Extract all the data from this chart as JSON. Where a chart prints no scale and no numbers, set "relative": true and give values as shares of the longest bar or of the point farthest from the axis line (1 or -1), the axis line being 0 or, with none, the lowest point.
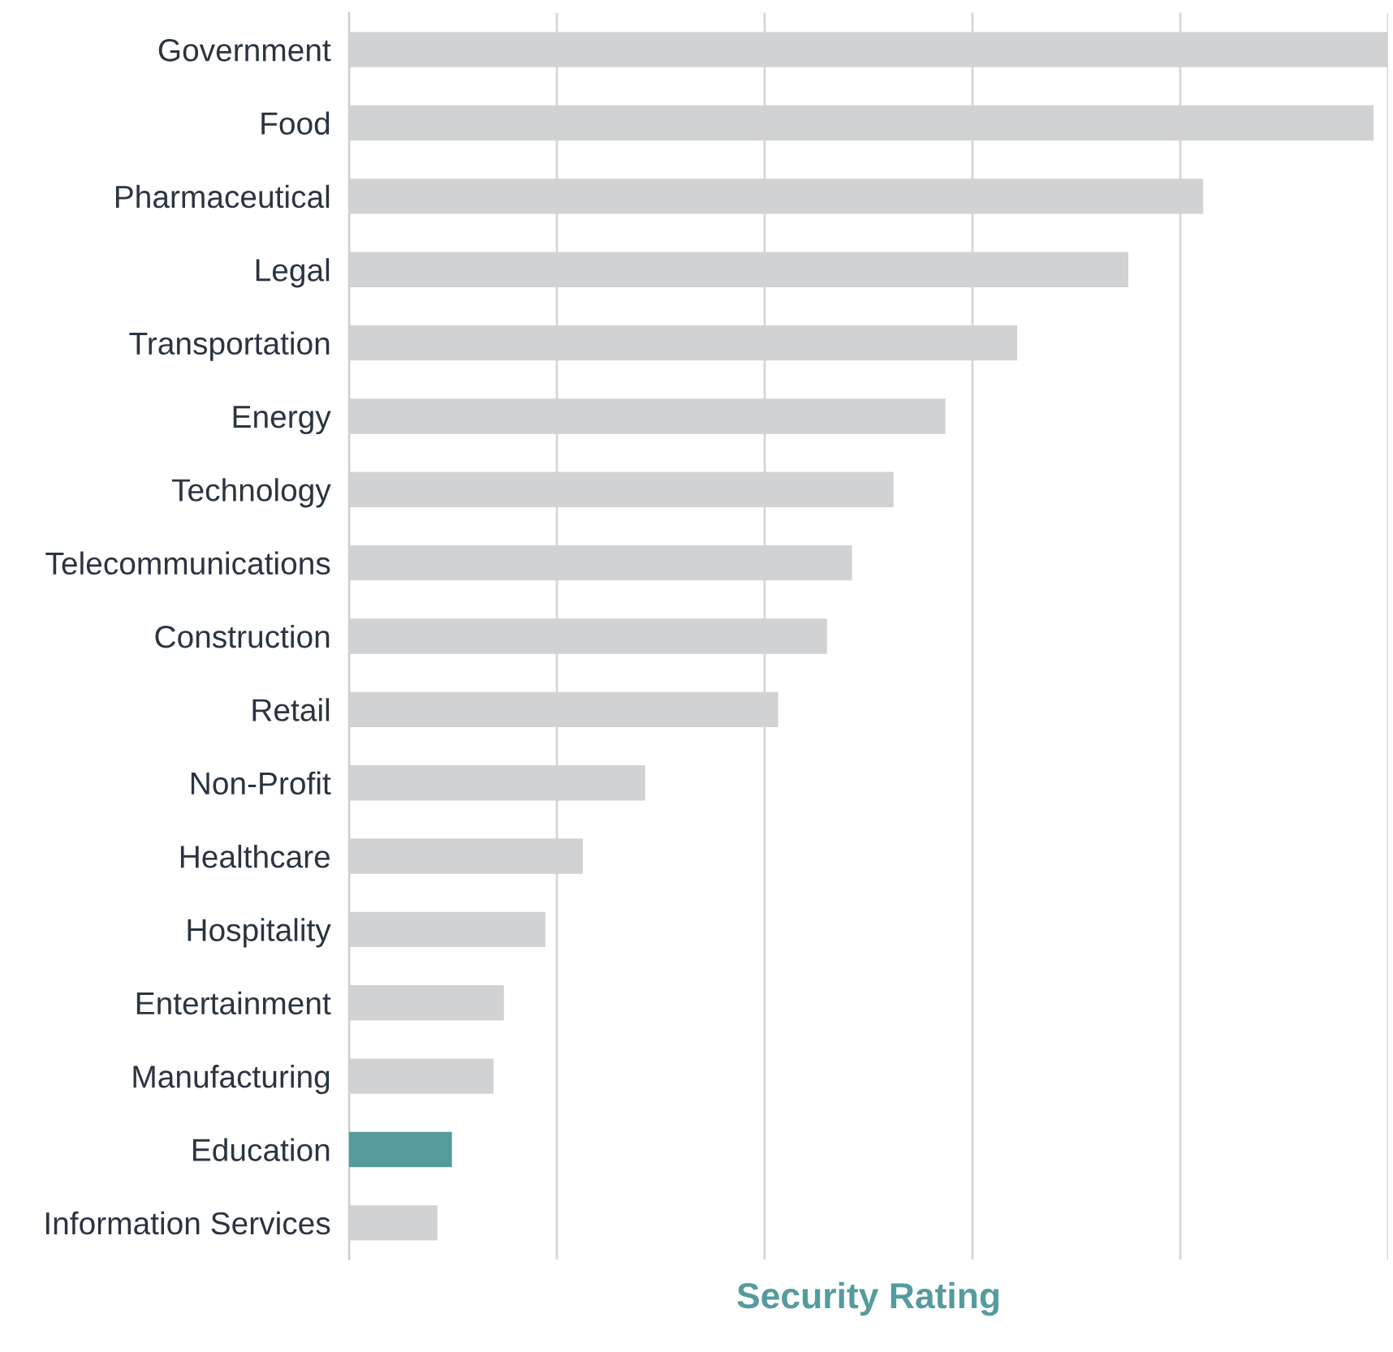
{
  "chart_data": {
    "type": "bar",
    "orientation": "horizontal",
    "relative": true,
    "xlabel": "Security Rating",
    "grid": "x",
    "categories": [
      "Government",
      "Food",
      "Pharmaceutical",
      "Legal",
      "Transportation",
      "Energy",
      "Technology",
      "Telecommunications",
      "Construction",
      "Retail",
      "Non-Profit",
      "Healthcare",
      "Hospitality",
      "Entertainment",
      "Manufacturing",
      "Education",
      "Information Services"
    ],
    "values": [
      1,
      0.986,
      0.822,
      0.75,
      0.643,
      0.574,
      0.524,
      0.484,
      0.46,
      0.413,
      0.285,
      0.225,
      0.189,
      0.149,
      0.139,
      0.099,
      0.085
    ],
    "colors": [
      "#d1d2d4",
      "#d1d2d4",
      "#d1d2d4",
      "#d1d2d4",
      "#d1d2d4",
      "#d1d2d4",
      "#d1d2d4",
      "#d1d2d4",
      "#d1d2d4",
      "#d1d2d4",
      "#d1d2d4",
      "#d1d2d4",
      "#d1d2d4",
      "#d1d2d4",
      "#d1d2d4",
      "#559b9e",
      "#d1d2d4"
    ]
  }
}
